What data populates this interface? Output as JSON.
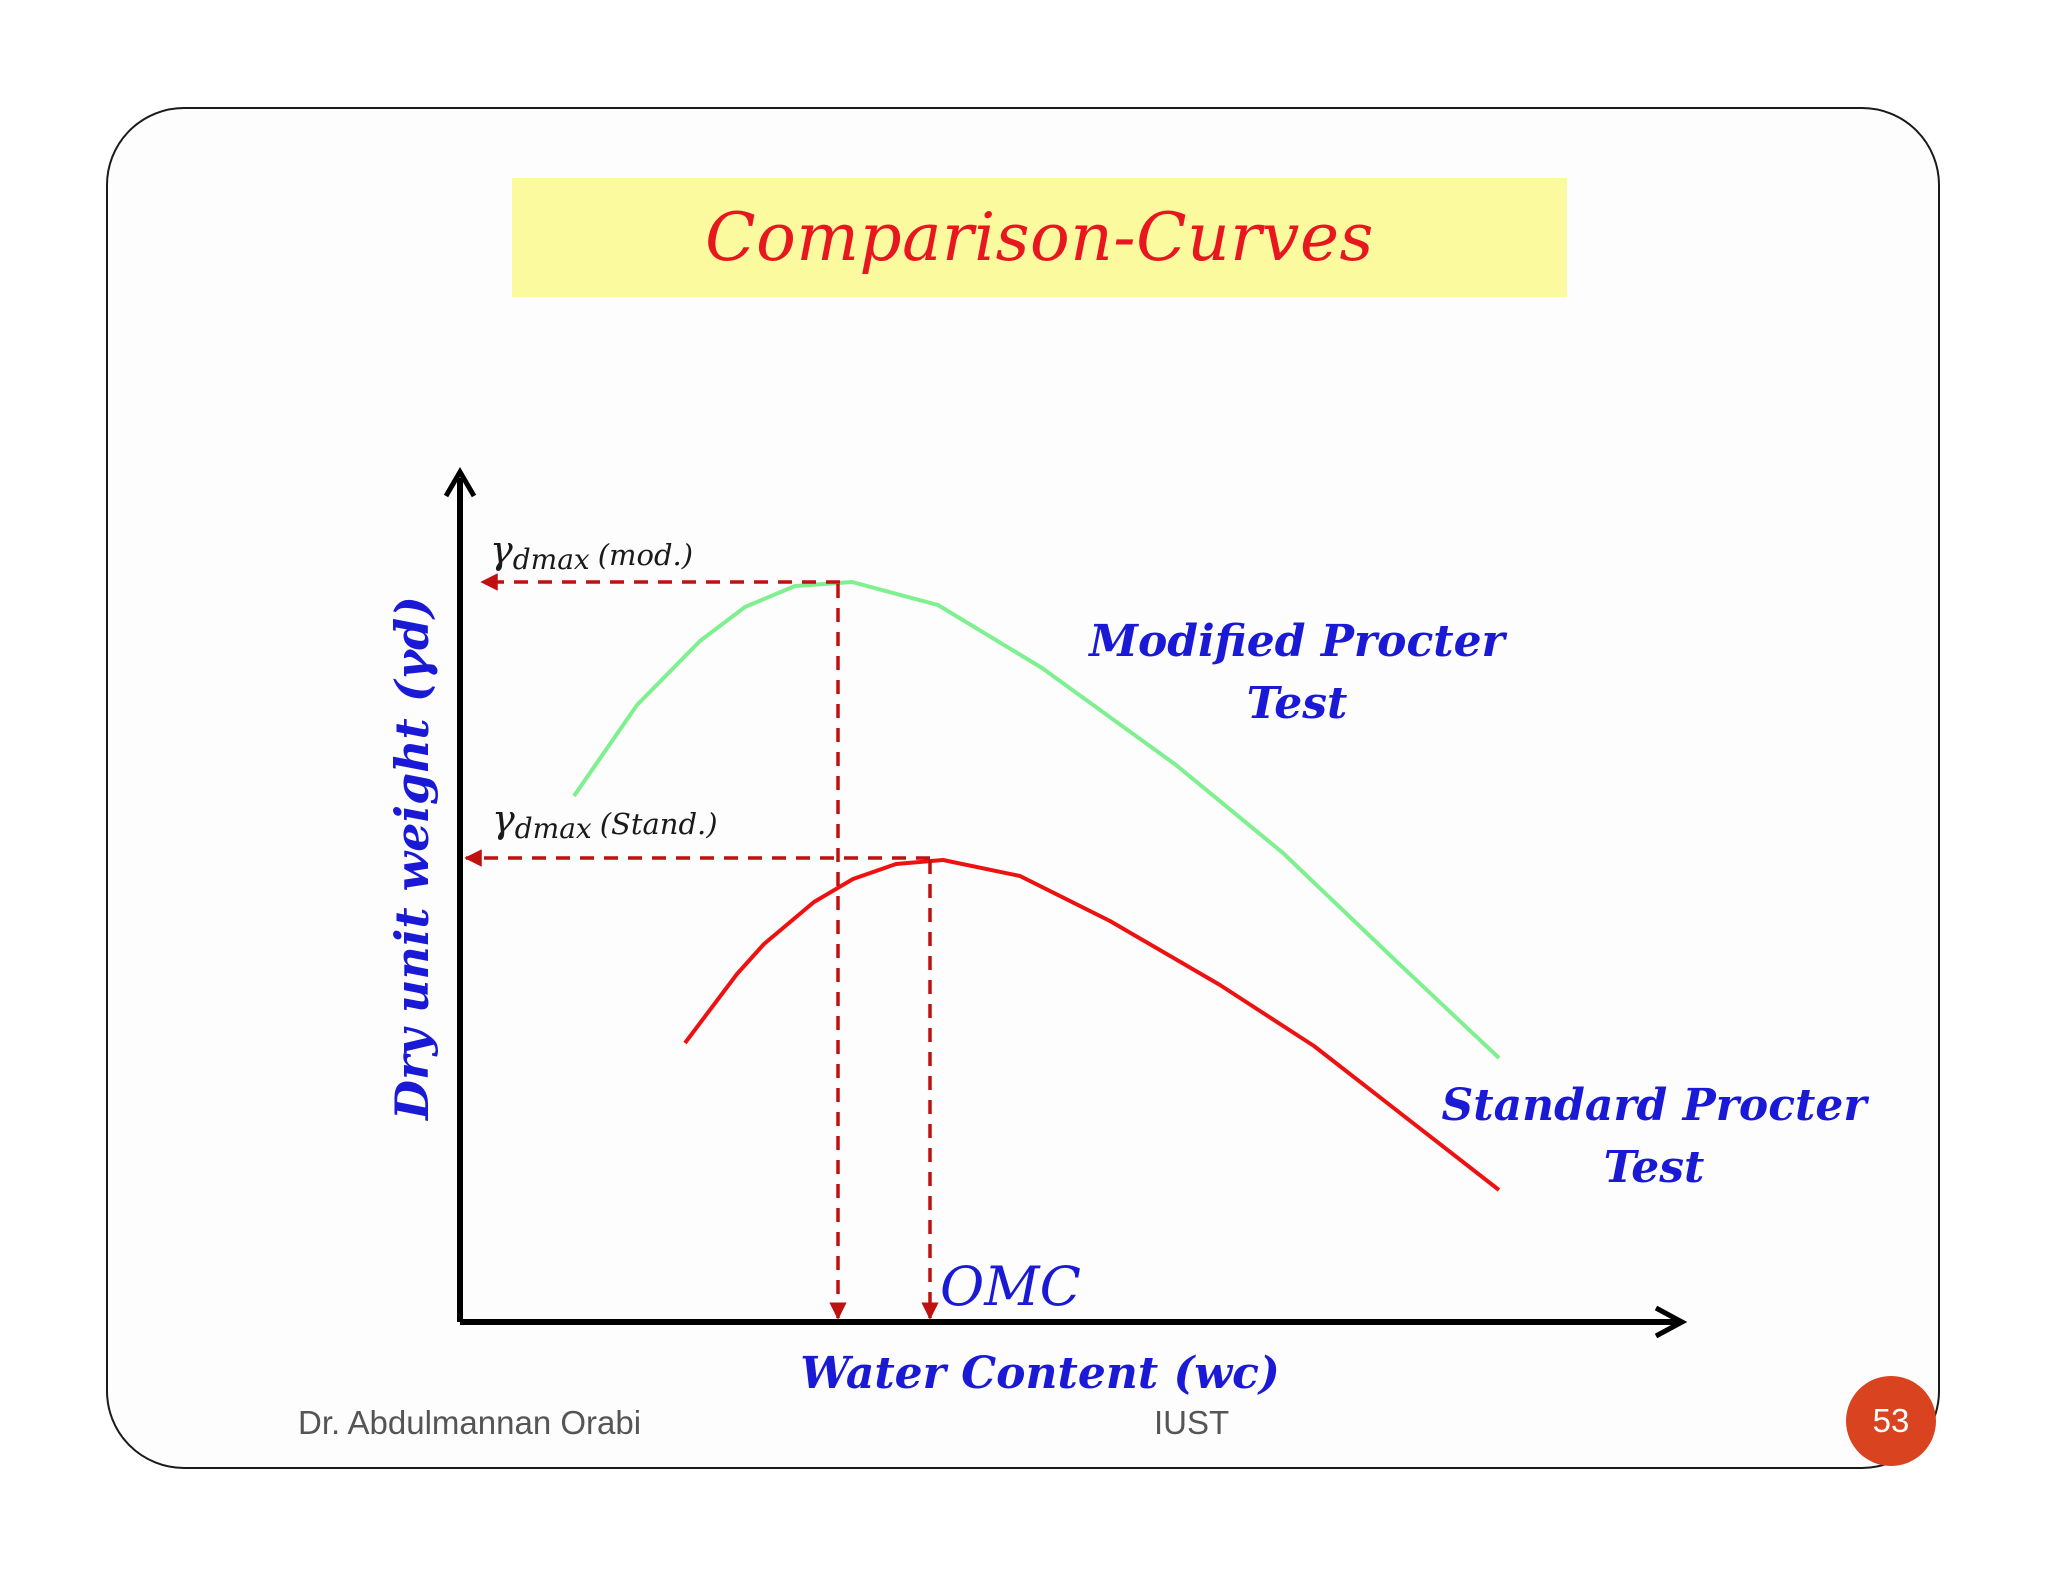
{
  "slide": {
    "title": "Comparison-Curves",
    "footer_author": "Dr. Abdulmannan Orabi",
    "footer_org": "IUST",
    "page_number": "53"
  },
  "diagram": {
    "y_axis_label": "Dry unit weight  (γd)",
    "x_axis_label": "Water Content (wc)",
    "omc_label": "OMC",
    "gamma_mod_symbol": "γ",
    "gamma_mod_sub": "dmax",
    "gamma_mod_paren": "(mod.)",
    "gamma_std_symbol": "γ",
    "gamma_std_sub": "dmax",
    "gamma_std_paren": "(Stand.)",
    "modified_label_line1": "Modified Procter",
    "modified_label_line2": "Test",
    "standard_label_line1": "Standard Procter",
    "standard_label_line2": "Test",
    "colors": {
      "modified_curve": "#7ef08f",
      "standard_curve": "#ee1111",
      "guide_lines": "#c01010",
      "axes": "#000000",
      "label_blue": "#1a1ad6"
    }
  }
}
